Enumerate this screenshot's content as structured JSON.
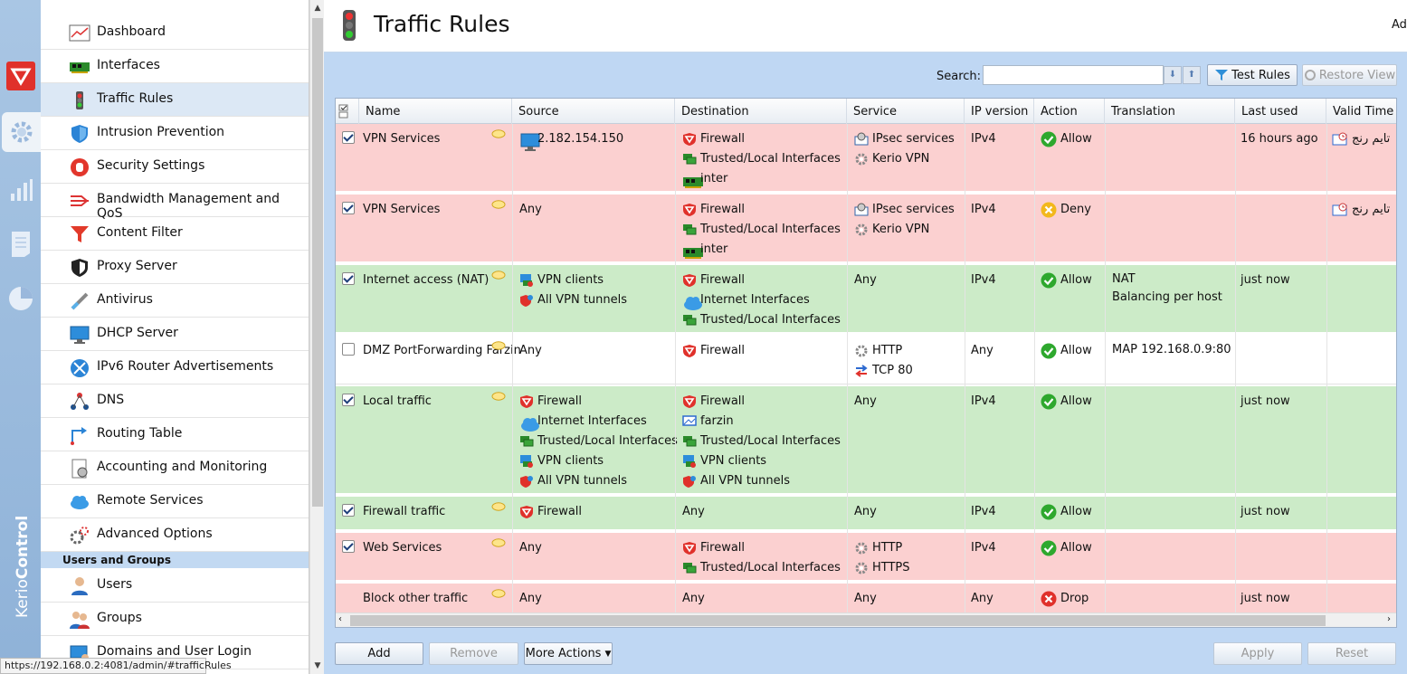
{
  "page": {
    "title": "Traffic Rules",
    "top_right_label": "Ad",
    "status_url": "https://192.168.0.2:4081/admin/#trafficRules"
  },
  "brand": {
    "text_a": "Kerio",
    "text_b": "Control"
  },
  "sidebar": {
    "items": [
      {
        "label": "Dashboard",
        "icon": "dashboard-icon"
      },
      {
        "label": "Interfaces",
        "icon": "network-card-icon"
      },
      {
        "label": "Traffic Rules",
        "icon": "traffic-light-icon",
        "selected": true
      },
      {
        "label": "Intrusion Prevention",
        "icon": "shield-icon"
      },
      {
        "label": "Security Settings",
        "icon": "stop-hand-icon"
      },
      {
        "label": "Bandwidth Management and QoS",
        "icon": "bandwidth-icon"
      },
      {
        "label": "Content Filter",
        "icon": "filter-icon"
      },
      {
        "label": "Proxy Server",
        "icon": "proxy-icon"
      },
      {
        "label": "Antivirus",
        "icon": "syringe-icon"
      },
      {
        "label": "DHCP Server",
        "icon": "monitor-icon"
      },
      {
        "label": "IPv6 Router Advertisements",
        "icon": "router-icon"
      },
      {
        "label": "DNS",
        "icon": "dns-icon"
      },
      {
        "label": "Routing Table",
        "icon": "routing-icon"
      },
      {
        "label": "Accounting and Monitoring",
        "icon": "report-icon"
      },
      {
        "label": "Remote Services",
        "icon": "cloud-icon"
      },
      {
        "label": "Advanced Options",
        "icon": "gears-icon"
      }
    ],
    "group_header": "Users and Groups",
    "group_items": [
      {
        "label": "Users",
        "icon": "user-icon"
      },
      {
        "label": "Groups",
        "icon": "group-icon"
      },
      {
        "label": "Domains and User Login",
        "icon": "domain-icon"
      }
    ]
  },
  "toolbar": {
    "search_label": "Search:",
    "search_value": "",
    "test_rules": "Test Rules",
    "restore_view": "Restore View"
  },
  "grid": {
    "columns": [
      "Name",
      "Source",
      "Destination",
      "Service",
      "IP version",
      "Action",
      "Translation",
      "Last used",
      "Valid Time"
    ],
    "rows": [
      {
        "color": "red",
        "checked": true,
        "name": "VPN Services",
        "source": [
          {
            "icon": "monitor-icon",
            "text": "2.182.154.150"
          }
        ],
        "destination": [
          {
            "icon": "firewall-icon",
            "text": "Firewall"
          },
          {
            "icon": "network-icon",
            "text": "Trusted/Local Interfaces"
          },
          {
            "icon": "network-card-icon",
            "text": "inter"
          }
        ],
        "service": [
          {
            "icon": "service-group-icon",
            "text": "IPsec services"
          },
          {
            "icon": "gear-icon",
            "text": "Kerio VPN"
          }
        ],
        "ip": "IPv4",
        "action": "Allow",
        "action_type": "allow",
        "translation": [],
        "last_used": "16 hours ago",
        "valid_time": "تایم رنج"
      },
      {
        "color": "red",
        "checked": true,
        "name": "VPN Services",
        "source": [
          {
            "icon": "",
            "text": "Any"
          }
        ],
        "destination": [
          {
            "icon": "firewall-icon",
            "text": "Firewall"
          },
          {
            "icon": "network-icon",
            "text": "Trusted/Local Interfaces"
          },
          {
            "icon": "network-card-icon",
            "text": "inter"
          }
        ],
        "service": [
          {
            "icon": "service-group-icon",
            "text": "IPsec services"
          },
          {
            "icon": "gear-icon",
            "text": "Kerio VPN"
          }
        ],
        "ip": "IPv4",
        "action": "Deny",
        "action_type": "deny",
        "translation": [],
        "last_used": "",
        "valid_time": "تایم رنج"
      },
      {
        "color": "green",
        "checked": true,
        "name": "Internet access (NAT)",
        "source": [
          {
            "icon": "vpn-clients-icon",
            "text": "VPN clients"
          },
          {
            "icon": "vpn-tunnel-icon",
            "text": "All VPN tunnels"
          }
        ],
        "destination": [
          {
            "icon": "firewall-icon",
            "text": "Firewall"
          },
          {
            "icon": "cloud-icon",
            "text": "Internet Interfaces"
          },
          {
            "icon": "network-icon",
            "text": "Trusted/Local Interfaces"
          }
        ],
        "service": [
          {
            "icon": "",
            "text": "Any"
          }
        ],
        "ip": "IPv4",
        "action": "Allow",
        "action_type": "allow",
        "translation": [
          "NAT",
          "Balancing per host"
        ],
        "last_used": "just now",
        "valid_time": ""
      },
      {
        "color": "white",
        "checked": false,
        "name": "DMZ PortForwarding Farzin",
        "source": [
          {
            "icon": "",
            "text": "Any"
          }
        ],
        "destination": [
          {
            "icon": "firewall-icon",
            "text": "Firewall"
          }
        ],
        "service": [
          {
            "icon": "gear-icon",
            "text": "HTTP"
          },
          {
            "icon": "port-icon",
            "text": "TCP 80"
          }
        ],
        "ip": "Any",
        "action": "Allow",
        "action_type": "allow",
        "translation": [
          "MAP 192.168.0.9:80"
        ],
        "last_used": "",
        "valid_time": ""
      },
      {
        "color": "green",
        "checked": true,
        "name": "Local traffic",
        "source": [
          {
            "icon": "firewall-icon",
            "text": "Firewall"
          },
          {
            "icon": "cloud-icon",
            "text": "Internet Interfaces"
          },
          {
            "icon": "network-icon",
            "text": "Trusted/Local Interfaces"
          },
          {
            "icon": "vpn-clients-icon",
            "text": "VPN clients"
          },
          {
            "icon": "vpn-tunnel-icon",
            "text": "All VPN tunnels"
          }
        ],
        "destination": [
          {
            "icon": "firewall-icon",
            "text": "Firewall"
          },
          {
            "icon": "host-icon",
            "text": "farzin"
          },
          {
            "icon": "network-icon",
            "text": "Trusted/Local Interfaces"
          },
          {
            "icon": "vpn-clients-icon",
            "text": "VPN clients"
          },
          {
            "icon": "vpn-tunnel-icon",
            "text": "All VPN tunnels"
          }
        ],
        "service": [
          {
            "icon": "",
            "text": "Any"
          }
        ],
        "ip": "IPv4",
        "action": "Allow",
        "action_type": "allow",
        "translation": [],
        "last_used": "just now",
        "valid_time": ""
      },
      {
        "color": "green",
        "checked": true,
        "name": "Firewall traffic",
        "source": [
          {
            "icon": "firewall-icon",
            "text": "Firewall"
          }
        ],
        "destination": [
          {
            "icon": "",
            "text": "Any"
          }
        ],
        "service": [
          {
            "icon": "",
            "text": "Any"
          }
        ],
        "ip": "IPv4",
        "action": "Allow",
        "action_type": "allow",
        "translation": [],
        "last_used": "just now",
        "valid_time": ""
      },
      {
        "color": "red",
        "checked": true,
        "name": "Web Services",
        "source": [
          {
            "icon": "",
            "text": "Any"
          }
        ],
        "destination": [
          {
            "icon": "firewall-icon",
            "text": "Firewall"
          },
          {
            "icon": "network-icon",
            "text": "Trusted/Local Interfaces"
          }
        ],
        "service": [
          {
            "icon": "gear-icon",
            "text": "HTTP"
          },
          {
            "icon": "gear-icon",
            "text": "HTTPS"
          }
        ],
        "ip": "IPv4",
        "action": "Allow",
        "action_type": "allow",
        "translation": [],
        "last_used": "",
        "valid_time": ""
      },
      {
        "color": "red",
        "checked": null,
        "name": "Block other traffic",
        "source": [
          {
            "icon": "",
            "text": "Any"
          }
        ],
        "destination": [
          {
            "icon": "",
            "text": "Any"
          }
        ],
        "service": [
          {
            "icon": "",
            "text": "Any"
          }
        ],
        "ip": "Any",
        "action": "Drop",
        "action_type": "drop",
        "translation": [],
        "last_used": "just now",
        "valid_time": ""
      }
    ]
  },
  "bottom": {
    "add": "Add",
    "remove": "Remove",
    "more_actions": "More Actions",
    "apply": "Apply",
    "reset": "Reset"
  },
  "colors": {
    "row_red": "#fbd0d0",
    "row_green": "#ccebc8",
    "panel_bg": "#bfd7f3",
    "kerio_red": "#e0312b"
  }
}
